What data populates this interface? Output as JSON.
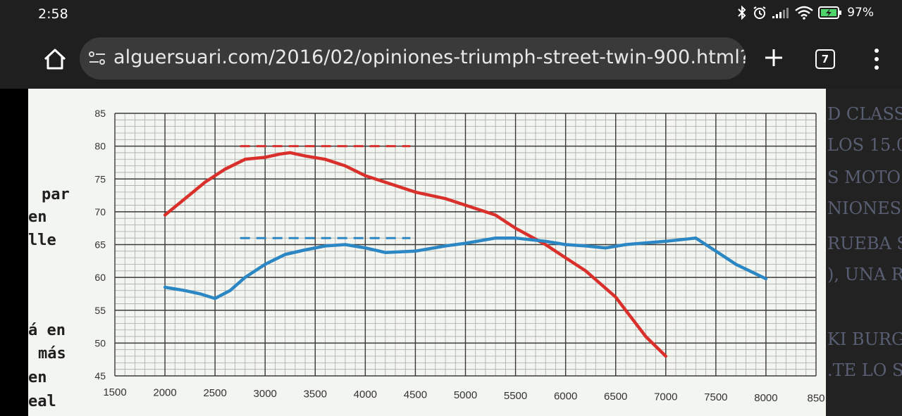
{
  "status_bar": {
    "time": "2:58",
    "battery": "97%",
    "icons": [
      "bluetooth-icon",
      "alarm-icon",
      "signal-icon",
      "wifi-icon",
      "battery-charging-icon"
    ]
  },
  "browser": {
    "url": "alguersuari.com/2016/02/opiniones-triumph-street-twin-900.html?",
    "tab_count": "7",
    "icons": [
      "home-icon",
      "site-settings-icon",
      "plus-icon",
      "tabs-icon",
      "more-icon"
    ]
  },
  "page": {
    "left_text": [
      "par",
      "en",
      "lle",
      "á  en",
      "más",
      "en",
      "eal"
    ],
    "right_text": [
      "D CLASS",
      "LOS 15.0",
      "S MOTO",
      "NIONES",
      "RUEBA S",
      "), UNA R",
      "KI BURG",
      ".TE LO S"
    ]
  },
  "chart_data": {
    "type": "line",
    "xlim": [
      1500,
      8500
    ],
    "ylim": [
      45,
      85
    ],
    "x_ticks": [
      "1500",
      "2000",
      "2500",
      "3000",
      "3500",
      "4000",
      "4500",
      "5000",
      "5500",
      "6000",
      "6500",
      "7000",
      "7500",
      "8000",
      "850"
    ],
    "y_ticks": [
      "85",
      "80",
      "75",
      "70",
      "65",
      "60",
      "55",
      "50",
      "45"
    ],
    "grid": true,
    "colors": {
      "red": "#d9302c",
      "blue": "#2b86c4"
    },
    "series": [
      {
        "color": "red",
        "x": [
          2000,
          2200,
          2400,
          2600,
          2800,
          3000,
          3150,
          3250,
          3400,
          3600,
          3800,
          4000,
          4200,
          4500,
          4800,
          5000,
          5300,
          5500,
          5800,
          6000,
          6200,
          6500,
          6800,
          7000
        ],
        "y": [
          69.5,
          72,
          74.5,
          76.5,
          78,
          78.3,
          78.8,
          79,
          78.5,
          78,
          77,
          75.5,
          74.5,
          73,
          72,
          71,
          69.5,
          67.5,
          65,
          63,
          61,
          57,
          51,
          48
        ]
      },
      {
        "color": "blue",
        "x": [
          2000,
          2200,
          2350,
          2500,
          2650,
          2800,
          3000,
          3200,
          3400,
          3600,
          3800,
          4000,
          4200,
          4500,
          4800,
          5000,
          5300,
          5500,
          5800,
          6000,
          6200,
          6400,
          6600,
          7000,
          7300,
          7500,
          7700,
          8000
        ],
        "y": [
          58.5,
          58,
          57.5,
          56.8,
          58,
          60,
          62,
          63.5,
          64.2,
          64.8,
          65,
          64.5,
          63.8,
          64,
          64.8,
          65.2,
          66,
          66,
          65.5,
          65,
          64.8,
          64.5,
          65,
          65.5,
          66,
          64,
          62,
          59.8
        ]
      },
      {
        "color": "red",
        "style": "dashed",
        "x": [
          2750,
          4450
        ],
        "y": [
          80,
          80
        ]
      },
      {
        "color": "blue",
        "style": "dashed",
        "x": [
          2750,
          4450
        ],
        "y": [
          66,
          66
        ]
      }
    ]
  }
}
